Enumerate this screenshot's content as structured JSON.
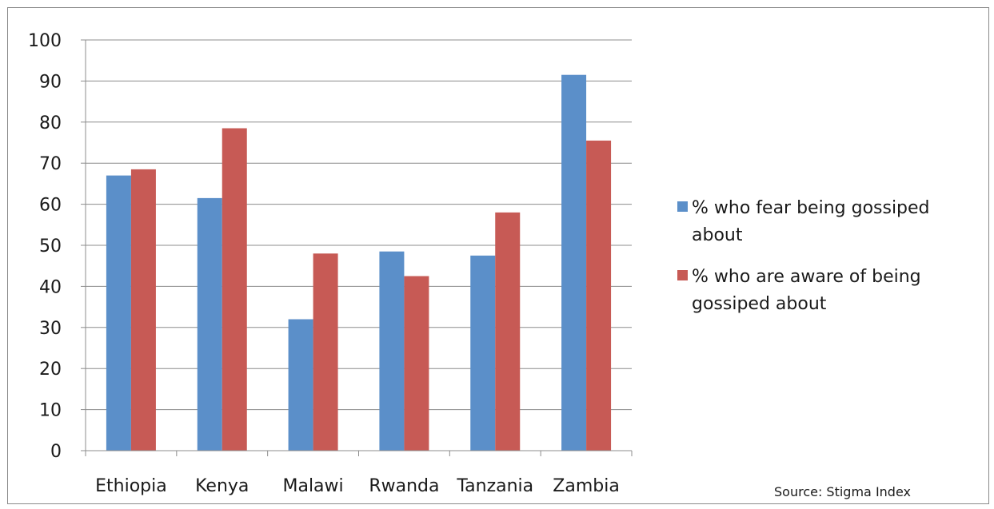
{
  "chart_data": {
    "type": "bar",
    "title": "",
    "xlabel": "",
    "ylabel": "",
    "categories": [
      "Ethiopia",
      "Kenya",
      "Malawi",
      "Rwanda",
      "Tanzania",
      "Zambia"
    ],
    "series": [
      {
        "name": "% who fear being gossiped about",
        "color": "#5b8fc9",
        "values": [
          67,
          61.5,
          32,
          48.5,
          47.5,
          91.5
        ]
      },
      {
        "name": "% who are aware of being gossiped about",
        "color": "#c75a55",
        "values": [
          68.5,
          78.5,
          48,
          42.5,
          58,
          75.5
        ]
      }
    ],
    "ylim": [
      0,
      100
    ],
    "yticks": [
      0,
      10,
      20,
      30,
      40,
      50,
      60,
      70,
      80,
      90,
      100
    ],
    "grid": true,
    "legend_position": "right"
  },
  "legend": {
    "items": [
      {
        "label": "% who fear being gossiped about",
        "color": "#5b8fc9"
      },
      {
        "label": "% who are aware of being gossiped about",
        "color": "#c75a55"
      }
    ]
  },
  "source_note": "Source: Stigma Index"
}
